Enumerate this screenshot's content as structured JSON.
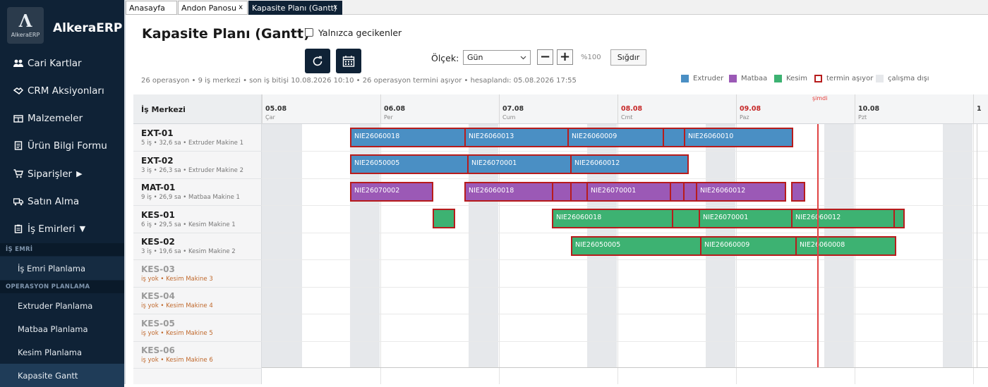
{
  "sidebar": {
    "logo_text": "AlkeraERP",
    "brand": "AlkeraERP",
    "items": [
      {
        "label": "Cari Kartlar",
        "icon": "users-icon"
      },
      {
        "label": "CRM Aksiyonları",
        "icon": "handshake-icon"
      },
      {
        "label": "Malzemeler",
        "icon": "boxes-icon"
      },
      {
        "label": "Ürün Bilgi Formu",
        "icon": "document-icon"
      },
      {
        "label": "Siparişler",
        "arrow": "▶",
        "icon": "cart-icon"
      },
      {
        "label": "Satın Alma",
        "icon": "truck-icon"
      },
      {
        "label": "İş Emirleri",
        "arrow": "▼",
        "icon": "clipboard-icon"
      }
    ],
    "sections": [
      {
        "title": "İŞ EMRİ",
        "items": [
          "İş Emri Planlama"
        ]
      },
      {
        "title": "OPERASYON PLANLAMA",
        "items": [
          "Extruder Planlama",
          "Matbaa Planlama",
          "Kesim Planlama",
          "Kapasite Gantt"
        ]
      }
    ]
  },
  "tabs": [
    {
      "label": "Anasayfa",
      "closable": false
    },
    {
      "label": "Andon Panosu",
      "closable": true,
      "close": "x"
    },
    {
      "label": "Kapasite Planı (Gantt)",
      "closable": true,
      "close": "x",
      "active": true
    }
  ],
  "page": {
    "title": "Kapasite Planı (Gantt)",
    "late_only_label": "Yalnızca gecikenler",
    "scale_label": "Ölçek:",
    "scale_value": "Gün",
    "zoom_out": "−",
    "zoom_in": "+",
    "zoom_pct": "%100",
    "fit_label": "Sığdır",
    "stats": "26 operasyon  •  9 iş merkezi  •  son iş bitişi 10.08.2026 10:10  •  26 operasyon termini aşıyor  •  hesaplandı: 05.08.2026 17:55"
  },
  "legend": [
    {
      "label": "Extruder",
      "color": "#4a8fc4"
    },
    {
      "label": "Matbaa",
      "color": "#9b59b6"
    },
    {
      "label": "Kesim",
      "color": "#3db272"
    },
    {
      "label": "termin aşıyor",
      "color": "#b71c1c"
    },
    {
      "label": "çalışma dışı",
      "color": "#e6e8eb"
    }
  ],
  "gantt": {
    "left_header": "İş Merkezi",
    "now_label": "şimdi",
    "days": [
      {
        "date": "05.08",
        "dow": "Çar"
      },
      {
        "date": "06.08",
        "dow": "Per"
      },
      {
        "date": "07.08",
        "dow": "Cum"
      },
      {
        "date": "08.08",
        "dow": "Cmt",
        "weekend": true
      },
      {
        "date": "09.08",
        "dow": "Paz",
        "weekend": true
      },
      {
        "date": "10.08",
        "dow": "Pzt"
      },
      {
        "date": "1",
        "dow": ""
      }
    ],
    "rows": [
      {
        "name": "EXT-01",
        "sub": "5 iş • 32,6 sa • Extruder Makine 1"
      },
      {
        "name": "EXT-02",
        "sub": "3 iş • 26,3 sa • Extruder Makine 2"
      },
      {
        "name": "MAT-01",
        "sub": "9 iş • 26,9 sa • Matbaa Makine 1"
      },
      {
        "name": "KES-01",
        "sub": "6 iş • 29,5 sa • Kesim Makine 1"
      },
      {
        "name": "KES-02",
        "sub": "3 iş • 19,6 sa • Kesim Makine 2"
      },
      {
        "name": "KES-03",
        "sub": "iş yok • Kesim Makine 3",
        "empty": true
      },
      {
        "name": "KES-04",
        "sub": "iş yok • Kesim Makine 4",
        "empty": true
      },
      {
        "name": "KES-05",
        "sub": "iş yok • Kesim Makine 5",
        "empty": true
      },
      {
        "name": "KES-06",
        "sub": "iş yok • Kesim Makine 6",
        "empty": true
      }
    ],
    "bars": [
      {
        "row": 0,
        "type": "ext",
        "label": "NIE26060018"
      },
      {
        "row": 0,
        "type": "ext",
        "label": "NIE26060013"
      },
      {
        "row": 0,
        "type": "ext",
        "label": "NIE26060009"
      },
      {
        "row": 0,
        "type": "ext",
        "label": ""
      },
      {
        "row": 0,
        "type": "ext",
        "label": "NIE26060010"
      },
      {
        "row": 1,
        "type": "ext",
        "label": "NIE26050005"
      },
      {
        "row": 1,
        "type": "ext",
        "label": "NIE26070001"
      },
      {
        "row": 1,
        "type": "ext",
        "label": "NIE26060012"
      },
      {
        "row": 2,
        "type": "mat",
        "label": "NIE26070002"
      },
      {
        "row": 2,
        "type": "mat",
        "label": "NIE26060018"
      },
      {
        "row": 2,
        "type": "mat",
        "label": ""
      },
      {
        "row": 2,
        "type": "mat",
        "label": ""
      },
      {
        "row": 2,
        "type": "mat",
        "label": "NIE26070001"
      },
      {
        "row": 2,
        "type": "mat",
        "label": ""
      },
      {
        "row": 2,
        "type": "mat",
        "label": ""
      },
      {
        "row": 2,
        "type": "mat",
        "label": "NIE26060012"
      },
      {
        "row": 2,
        "type": "mat",
        "label": ""
      },
      {
        "row": 3,
        "type": "kes",
        "label": ""
      },
      {
        "row": 3,
        "type": "kes",
        "label": "NIE26060018"
      },
      {
        "row": 3,
        "type": "kes",
        "label": ""
      },
      {
        "row": 3,
        "type": "kes",
        "label": "NIE26070001"
      },
      {
        "row": 3,
        "type": "kes",
        "label": "NIE26060012"
      },
      {
        "row": 3,
        "type": "kes",
        "label": ""
      },
      {
        "row": 4,
        "type": "kes",
        "label": "NIE26050005"
      },
      {
        "row": 4,
        "type": "kes",
        "label": "NIE26060009"
      },
      {
        "row": 4,
        "type": "kes",
        "label": "NIE26060008"
      }
    ]
  }
}
